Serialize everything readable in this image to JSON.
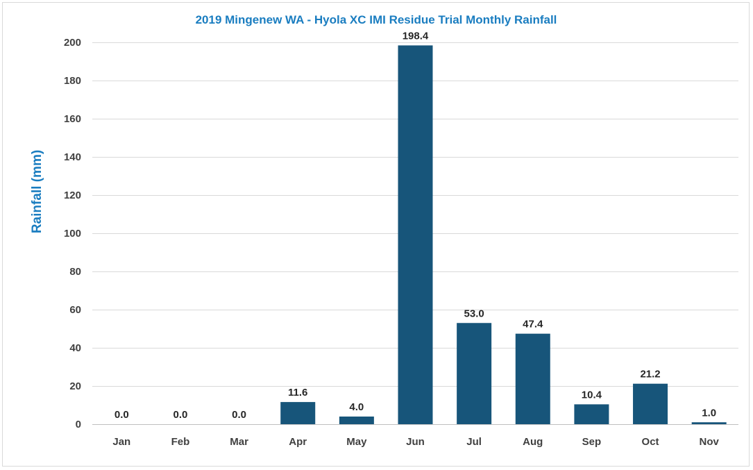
{
  "chart_data": {
    "type": "bar",
    "title": "2019 Mingenew WA - Hyola XC IMI Residue Trial Monthly Rainfall",
    "xlabel": "",
    "ylabel": "Rainfall (mm)",
    "categories": [
      "Jan",
      "Feb",
      "Mar",
      "Apr",
      "May",
      "Jun",
      "Jul",
      "Aug",
      "Sep",
      "Oct",
      "Nov"
    ],
    "values": [
      0.0,
      0.0,
      0.0,
      11.6,
      4.0,
      198.4,
      53.0,
      47.4,
      10.4,
      21.2,
      1.0
    ],
    "value_labels": [
      "0.0",
      "0.0",
      "0.0",
      "11.6",
      "4.0",
      "198.4",
      "53.0",
      "47.4",
      "10.4",
      "21.2",
      "1.0"
    ],
    "ylim": [
      0,
      200
    ],
    "yticks": [
      0,
      20,
      40,
      60,
      80,
      100,
      120,
      140,
      160,
      180,
      200
    ],
    "grid": true,
    "legend": "none",
    "bar_color": "#17557a",
    "title_color": "#1a7dc0"
  }
}
